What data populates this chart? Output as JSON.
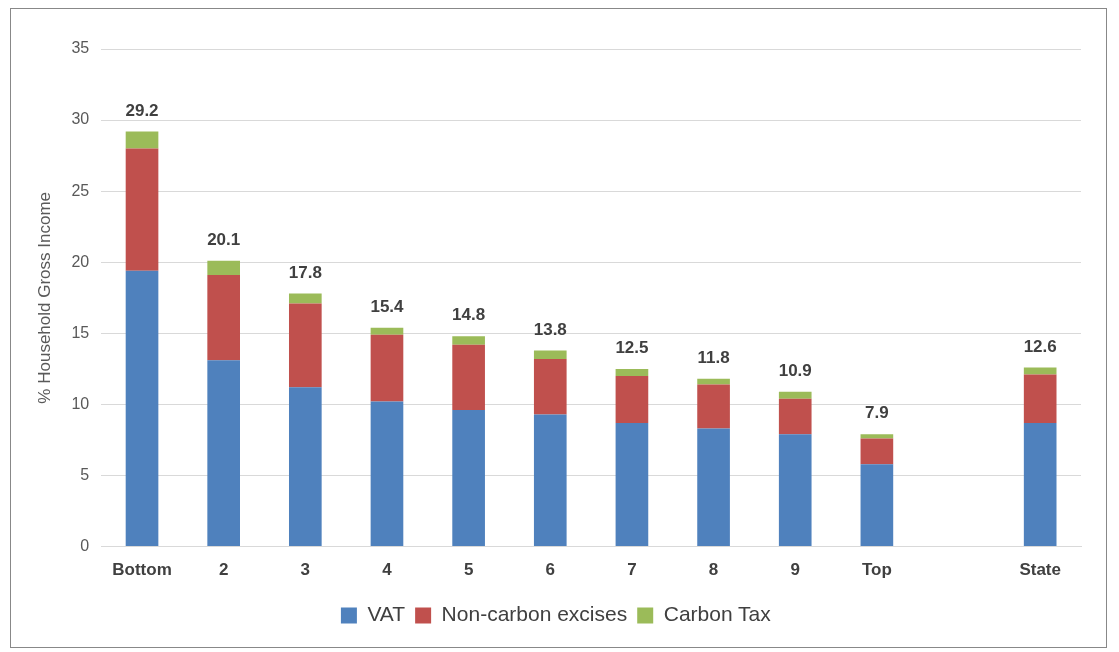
{
  "chart_data": {
    "type": "bar",
    "stacked": true,
    "ylabel": "% Household Gross Income",
    "categories": [
      "Bottom",
      "2",
      "3",
      "4",
      "5",
      "6",
      "7",
      "8",
      "9",
      "Top",
      null,
      "State"
    ],
    "series": [
      {
        "name": "VAT",
        "color": "#4f81bd",
        "values": [
          19.4,
          13.1,
          11.2,
          10.2,
          9.6,
          9.3,
          8.7,
          8.3,
          7.9,
          5.8,
          null,
          8.7
        ]
      },
      {
        "name": "Non-carbon excises",
        "color": "#c0504d",
        "values": [
          8.6,
          6.0,
          5.9,
          4.7,
          4.6,
          3.9,
          3.3,
          3.1,
          2.5,
          1.8,
          null,
          3.4
        ]
      },
      {
        "name": "Carbon Tax",
        "color": "#9bbb59",
        "values": [
          1.2,
          1.0,
          0.7,
          0.5,
          0.6,
          0.6,
          0.5,
          0.4,
          0.5,
          0.3,
          null,
          0.5
        ]
      }
    ],
    "totals": [
      "29.2",
      "20.1",
      "17.8",
      "15.4",
      "14.8",
      "13.8",
      "12.5",
      "11.8",
      "10.9",
      "7.9",
      null,
      "12.6"
    ],
    "ylim": [
      0,
      35
    ],
    "yticks": [
      0,
      5,
      10,
      15,
      20,
      25,
      30,
      35
    ],
    "grid": "y",
    "legend": "bottom"
  }
}
